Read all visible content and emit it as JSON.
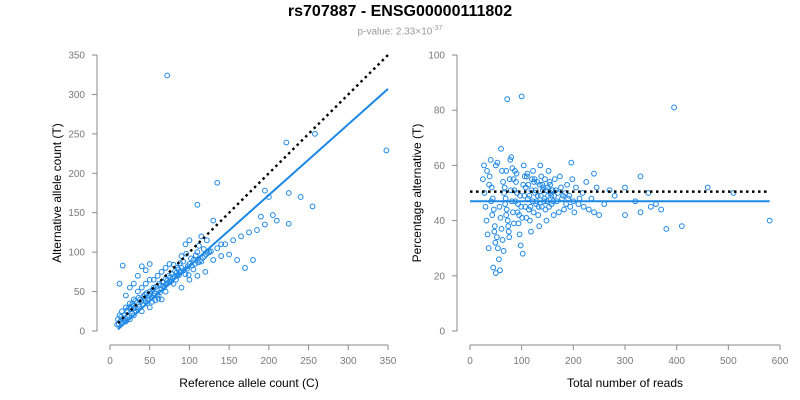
{
  "header": {
    "title": "rs707887 - ENSG00000111802",
    "pvalue_prefix": "p-value: 2.33×10",
    "pvalue_exponent": "-37"
  },
  "chart_data": [
    {
      "type": "scatter",
      "xlabel": "Reference allele count (C)",
      "ylabel": "Alternative allele count (T)",
      "xlim": [
        0,
        350
      ],
      "ylim": [
        0,
        350
      ],
      "xticks": [
        0,
        50,
        100,
        150,
        200,
        250,
        300,
        350
      ],
      "yticks": [
        0,
        50,
        100,
        150,
        200,
        250,
        300,
        350
      ],
      "identity_line": {
        "x": [
          10,
          350
        ],
        "y": [
          10,
          350
        ]
      },
      "fit_line": {
        "x": [
          10,
          350
        ],
        "y": [
          2,
          307
        ]
      },
      "points": [
        [
          72,
          324
        ],
        [
          348,
          229
        ],
        [
          258,
          250
        ],
        [
          222,
          239
        ],
        [
          135,
          188
        ],
        [
          195,
          178
        ],
        [
          200,
          170
        ],
        [
          190,
          145
        ],
        [
          205,
          147
        ],
        [
          225,
          175
        ],
        [
          255,
          158
        ],
        [
          225,
          136
        ],
        [
          195,
          135
        ],
        [
          110,
          160
        ],
        [
          130,
          140
        ],
        [
          115,
          120
        ],
        [
          122,
          115
        ],
        [
          140,
          110
        ],
        [
          100,
          115
        ],
        [
          95,
          110
        ],
        [
          105,
          90
        ],
        [
          150,
          97
        ],
        [
          160,
          90
        ],
        [
          170,
          80
        ],
        [
          180,
          90
        ],
        [
          110,
          100
        ],
        [
          118,
          104
        ],
        [
          96,
          98
        ],
        [
          90,
          95
        ],
        [
          100,
          85
        ],
        [
          85,
          80
        ],
        [
          80,
          84
        ],
        [
          75,
          85
        ],
        [
          70,
          80
        ],
        [
          65,
          75
        ],
        [
          60,
          70
        ],
        [
          55,
          65
        ],
        [
          50,
          65
        ],
        [
          55,
          55
        ],
        [
          45,
          60
        ],
        [
          40,
          55
        ],
        [
          35,
          50
        ],
        [
          30,
          40
        ],
        [
          25,
          35
        ],
        [
          20,
          30
        ],
        [
          15,
          25
        ],
        [
          12,
          20
        ],
        [
          10,
          15
        ],
        [
          14,
          18
        ],
        [
          18,
          20
        ],
        [
          22,
          24
        ],
        [
          26,
          28
        ],
        [
          30,
          32
        ],
        [
          34,
          36
        ],
        [
          38,
          40
        ],
        [
          42,
          44
        ],
        [
          46,
          48
        ],
        [
          50,
          50
        ],
        [
          54,
          52
        ],
        [
          58,
          56
        ],
        [
          62,
          60
        ],
        [
          66,
          62
        ],
        [
          70,
          66
        ],
        [
          74,
          70
        ],
        [
          78,
          72
        ],
        [
          82,
          76
        ],
        [
          86,
          78
        ],
        [
          90,
          80
        ],
        [
          16,
          83
        ],
        [
          12,
          60
        ],
        [
          40,
          82
        ],
        [
          45,
          77
        ],
        [
          50,
          85
        ],
        [
          30,
          60
        ],
        [
          25,
          55
        ],
        [
          20,
          45
        ],
        [
          35,
          70
        ],
        [
          60,
          45
        ],
        [
          65,
          40
        ],
        [
          70,
          50
        ],
        [
          80,
          60
        ],
        [
          90,
          55
        ],
        [
          100,
          65
        ],
        [
          110,
          70
        ],
        [
          120,
          75
        ],
        [
          130,
          90
        ],
        [
          140,
          95
        ],
        [
          50,
          30
        ],
        [
          40,
          25
        ],
        [
          30,
          20
        ],
        [
          25,
          15
        ],
        [
          20,
          12
        ],
        [
          15,
          10
        ],
        [
          35,
          28
        ],
        [
          45,
          38
        ],
        [
          55,
          45
        ],
        [
          75,
          62
        ],
        [
          85,
          70
        ],
        [
          95,
          72
        ],
        [
          105,
          78
        ],
        [
          115,
          88
        ],
        [
          125,
          100
        ],
        [
          135,
          105
        ],
        [
          145,
          110
        ],
        [
          155,
          115
        ],
        [
          165,
          120
        ],
        [
          175,
          125
        ],
        [
          185,
          128
        ],
        [
          210,
          140
        ],
        [
          240,
          170
        ],
        [
          24,
          30
        ],
        [
          28,
          34
        ],
        [
          32,
          38
        ],
        [
          36,
          42
        ],
        [
          44,
          46
        ],
        [
          48,
          40
        ],
        [
          52,
          42
        ],
        [
          56,
          48
        ],
        [
          64,
          58
        ],
        [
          68,
          55
        ],
        [
          72,
          64
        ],
        [
          76,
          68
        ],
        [
          84,
          74
        ],
        [
          88,
          86
        ],
        [
          92,
          88
        ],
        [
          98,
          82
        ],
        [
          102,
          92
        ],
        [
          108,
          96
        ],
        [
          112,
          108
        ],
        [
          33,
          25
        ],
        [
          37,
          31
        ],
        [
          41,
          33
        ],
        [
          47,
          35
        ],
        [
          53,
          37
        ],
        [
          57,
          39
        ],
        [
          61,
          41
        ],
        [
          28,
          22
        ],
        [
          22,
          18
        ],
        [
          19,
          16
        ],
        [
          17,
          14
        ],
        [
          13,
          12
        ],
        [
          11,
          9
        ],
        [
          9,
          8
        ],
        [
          21,
          26
        ],
        [
          27,
          31
        ],
        [
          31,
          29
        ],
        [
          39,
          37
        ],
        [
          43,
          41
        ],
        [
          49,
          45
        ],
        [
          51,
          47
        ],
        [
          59,
          53
        ],
        [
          63,
          49
        ],
        [
          67,
          57
        ],
        [
          71,
          59
        ],
        [
          73,
          61
        ],
        [
          77,
          63
        ],
        [
          79,
          67
        ],
        [
          81,
          69
        ],
        [
          83,
          65
        ],
        [
          87,
          71
        ],
        [
          89,
          75
        ],
        [
          93,
          77
        ],
        [
          97,
          79
        ],
        [
          99,
          71
        ],
        [
          103,
          83
        ],
        [
          107,
          85
        ],
        [
          111,
          87
        ],
        [
          113,
          89
        ],
        [
          117,
          93
        ],
        [
          119,
          95
        ],
        [
          121,
          97
        ],
        [
          123,
          99
        ],
        [
          127,
          101
        ]
      ]
    },
    {
      "type": "scatter",
      "xlabel": "Total number of reads",
      "ylabel": "Percentage alternative (T)",
      "xlim": [
        0,
        600
      ],
      "ylim": [
        0,
        100
      ],
      "xticks": [
        0,
        100,
        200,
        300,
        400,
        500,
        600
      ],
      "yticks": [
        0,
        20,
        40,
        60,
        80,
        100
      ],
      "reference_line": {
        "x": [
          0,
          580
        ],
        "y": [
          50.5,
          50.5
        ]
      },
      "fit_line": {
        "x": [
          0,
          580
        ],
        "y": [
          47,
          47
        ]
      },
      "points": [
        [
          72,
          84
        ],
        [
          100,
          85
        ],
        [
          395,
          81
        ],
        [
          60,
          66
        ],
        [
          40,
          62
        ],
        [
          80,
          63
        ],
        [
          50,
          60
        ],
        [
          70,
          58
        ],
        [
          90,
          57
        ],
        [
          110,
          56
        ],
        [
          120,
          55
        ],
        [
          130,
          54
        ],
        [
          140,
          53
        ],
        [
          150,
          52
        ],
        [
          160,
          51
        ],
        [
          170,
          50
        ],
        [
          180,
          49
        ],
        [
          190,
          48
        ],
        [
          200,
          47
        ],
        [
          210,
          46
        ],
        [
          220,
          45
        ],
        [
          230,
          44
        ],
        [
          240,
          43
        ],
        [
          250,
          42
        ],
        [
          300,
          42
        ],
        [
          330,
          43
        ],
        [
          370,
          44
        ],
        [
          380,
          37
        ],
        [
          410,
          38
        ],
        [
          360,
          46
        ],
        [
          460,
          52
        ],
        [
          580,
          40
        ],
        [
          510,
          50
        ],
        [
          330,
          56
        ],
        [
          270,
          51
        ],
        [
          240,
          57
        ],
        [
          25,
          55
        ],
        [
          28,
          50
        ],
        [
          30,
          45
        ],
        [
          32,
          40
        ],
        [
          34,
          35
        ],
        [
          36,
          30
        ],
        [
          38,
          56
        ],
        [
          42,
          52
        ],
        [
          44,
          48
        ],
        [
          46,
          44
        ],
        [
          48,
          38
        ],
        [
          52,
          34
        ],
        [
          54,
          30
        ],
        [
          56,
          26
        ],
        [
          58,
          22
        ],
        [
          50,
          21
        ],
        [
          45,
          23
        ],
        [
          62,
          58
        ],
        [
          64,
          54
        ],
        [
          66,
          50
        ],
        [
          68,
          46
        ],
        [
          70,
          42
        ],
        [
          74,
          38
        ],
        [
          76,
          34
        ],
        [
          78,
          62
        ],
        [
          82,
          59
        ],
        [
          84,
          55
        ],
        [
          86,
          51
        ],
        [
          88,
          47
        ],
        [
          92,
          43
        ],
        [
          94,
          39
        ],
        [
          96,
          35
        ],
        [
          98,
          31
        ],
        [
          102,
          28
        ],
        [
          104,
          60
        ],
        [
          106,
          56
        ],
        [
          108,
          52
        ],
        [
          112,
          48
        ],
        [
          114,
          44
        ],
        [
          116,
          40
        ],
        [
          118,
          36
        ],
        [
          122,
          58
        ],
        [
          124,
          54
        ],
        [
          126,
          50
        ],
        [
          128,
          46
        ],
        [
          132,
          42
        ],
        [
          134,
          38
        ],
        [
          136,
          60
        ],
        [
          138,
          56
        ],
        [
          142,
          52
        ],
        [
          144,
          48
        ],
        [
          146,
          44
        ],
        [
          148,
          40
        ],
        [
          152,
          58
        ],
        [
          154,
          54
        ],
        [
          156,
          50
        ],
        [
          158,
          46
        ],
        [
          162,
          42
        ],
        [
          164,
          55
        ],
        [
          166,
          51
        ],
        [
          168,
          47
        ],
        [
          172,
          43
        ],
        [
          174,
          56
        ],
        [
          176,
          52
        ],
        [
          178,
          48
        ],
        [
          182,
          44
        ],
        [
          184,
          50
        ],
        [
          186,
          46
        ],
        [
          188,
          53
        ],
        [
          192,
          49
        ],
        [
          194,
          45
        ],
        [
          196,
          61
        ],
        [
          198,
          55
        ],
        [
          202,
          43
        ],
        [
          205,
          52
        ],
        [
          212,
          48
        ],
        [
          218,
          50
        ],
        [
          225,
          54
        ],
        [
          235,
          48
        ],
        [
          245,
          52
        ],
        [
          260,
          46
        ],
        [
          280,
          49
        ],
        [
          300,
          52
        ],
        [
          320,
          47
        ],
        [
          345,
          50
        ],
        [
          350,
          45
        ],
        [
          27,
          60
        ],
        [
          33,
          58
        ],
        [
          37,
          53
        ],
        [
          41,
          47
        ],
        [
          43,
          42
        ],
        [
          47,
          36
        ],
        [
          49,
          32
        ],
        [
          53,
          61
        ],
        [
          57,
          45
        ],
        [
          59,
          41
        ],
        [
          61,
          37
        ],
        [
          63,
          33
        ],
        [
          65,
          29
        ],
        [
          67,
          52
        ],
        [
          69,
          48
        ],
        [
          71,
          44
        ],
        [
          73,
          40
        ],
        [
          75,
          36
        ],
        [
          77,
          55
        ],
        [
          79,
          51
        ],
        [
          81,
          47
        ],
        [
          83,
          43
        ],
        [
          85,
          39
        ],
        [
          87,
          58
        ],
        [
          89,
          54
        ],
        [
          91,
          50
        ],
        [
          93,
          46
        ],
        [
          95,
          42
        ],
        [
          97,
          49
        ],
        [
          99,
          45
        ],
        [
          101,
          41
        ],
        [
          103,
          53
        ],
        [
          105,
          49
        ],
        [
          107,
          45
        ],
        [
          109,
          41
        ],
        [
          111,
          57
        ],
        [
          113,
          53
        ],
        [
          115,
          49
        ],
        [
          117,
          45
        ],
        [
          119,
          51
        ],
        [
          121,
          47
        ],
        [
          123,
          43
        ],
        [
          125,
          55
        ],
        [
          127,
          51
        ],
        [
          129,
          47
        ],
        [
          131,
          49
        ],
        [
          133,
          45
        ],
        [
          135,
          53
        ],
        [
          137,
          49
        ],
        [
          139,
          45
        ],
        [
          141,
          51
        ],
        [
          143,
          47
        ],
        [
          145,
          55
        ],
        [
          147,
          51
        ],
        [
          149,
          47
        ],
        [
          151,
          49
        ],
        [
          153,
          45
        ],
        [
          155,
          53
        ],
        [
          157,
          49
        ],
        [
          159,
          51
        ],
        [
          161,
          47
        ],
        [
          163,
          49
        ]
      ]
    }
  ]
}
